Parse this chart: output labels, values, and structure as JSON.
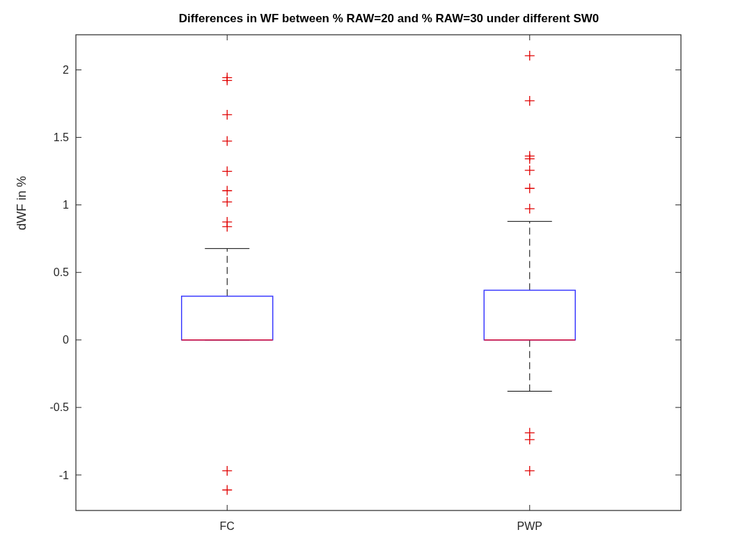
{
  "chart_data": {
    "type": "box",
    "title": "Differences in WF between % RAW=20 and % RAW=30 under different SW0",
    "ylabel": "dWF in %",
    "categories": [
      "FC",
      "PWP"
    ],
    "boxes": [
      {
        "low": 0,
        "q1": 0,
        "median": 0,
        "q3": 0.324,
        "high": 0.677,
        "outliers": [
          1.943,
          1.922,
          1.668,
          1.473,
          1.249,
          1.105,
          1.022,
          0.874,
          0.839,
          -0.969,
          -1.111
        ]
      },
      {
        "low": -0.38,
        "q1": 0,
        "median": 0,
        "q3": 0.368,
        "high": 0.878,
        "outliers": [
          2.105,
          1.771,
          1.362,
          1.341,
          1.256,
          1.123,
          0.972,
          -0.688,
          -0.738,
          -0.969
        ]
      }
    ],
    "ylim": [
      -1.263,
      2.26
    ],
    "yticks": [
      -1,
      -0.5,
      0,
      0.5,
      1,
      1.5,
      2
    ],
    "marker": "cross",
    "grid": false
  }
}
